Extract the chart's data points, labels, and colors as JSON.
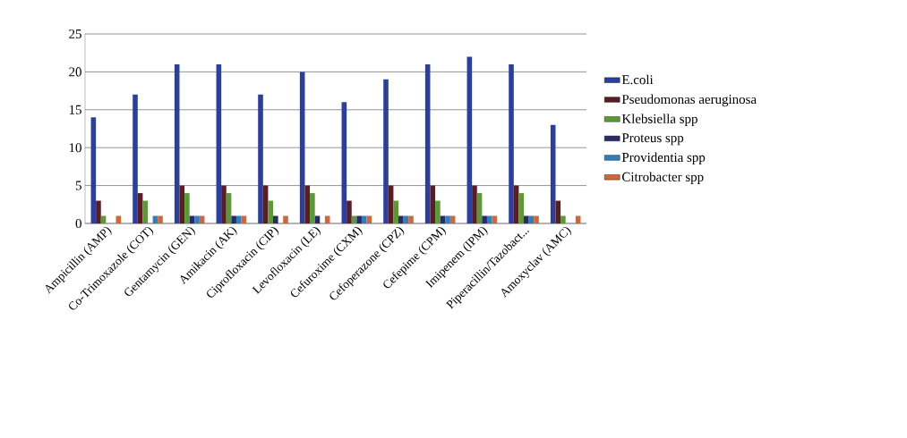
{
  "chart_data": {
    "type": "bar",
    "categories": [
      "Ampicillin (AMP)",
      "Co-Trimoxazole (COT)",
      "Gentamycin (GEN)",
      "Amikacin (AK)",
      "Ciprofloxacin (CIP)",
      "Levofloxacin (LE)",
      "Cefuroxime (CXM)",
      "Cefoperazone (CPZ)",
      "Cefepime (CPM)",
      "Imipenem (IPM)",
      "Piperacillin/Tazobact...",
      "Amoxyclav (AMC)"
    ],
    "series": [
      {
        "name": "E.coli",
        "color": "#2b3f9e",
        "values": [
          14,
          17,
          21,
          21,
          17,
          20,
          16,
          19,
          21,
          22,
          21,
          13
        ]
      },
      {
        "name": "Pseudomonas aeruginosa",
        "color": "#5a1e22",
        "values": [
          3,
          4,
          5,
          5,
          5,
          5,
          3,
          5,
          5,
          5,
          5,
          3
        ]
      },
      {
        "name": "Klebsiella spp",
        "color": "#5a9a35",
        "values": [
          1,
          3,
          4,
          4,
          3,
          4,
          1,
          3,
          3,
          4,
          4,
          1
        ]
      },
      {
        "name": "Proteus spp",
        "color": "#2a2a6a",
        "values": [
          0,
          0,
          1,
          1,
          1,
          1,
          1,
          1,
          1,
          1,
          1,
          0
        ]
      },
      {
        "name": "Providentia spp",
        "color": "#2e7fbf",
        "values": [
          0,
          1,
          1,
          1,
          0,
          0,
          1,
          1,
          1,
          1,
          1,
          0
        ]
      },
      {
        "name": "Citrobacter spp",
        "color": "#d0663a",
        "values": [
          1,
          1,
          1,
          1,
          1,
          1,
          1,
          1,
          1,
          1,
          1,
          1
        ]
      }
    ],
    "ylim": [
      0,
      25
    ],
    "yticks": [
      0,
      5,
      10,
      15,
      20,
      25
    ],
    "grid": "y",
    "legend": "right"
  }
}
